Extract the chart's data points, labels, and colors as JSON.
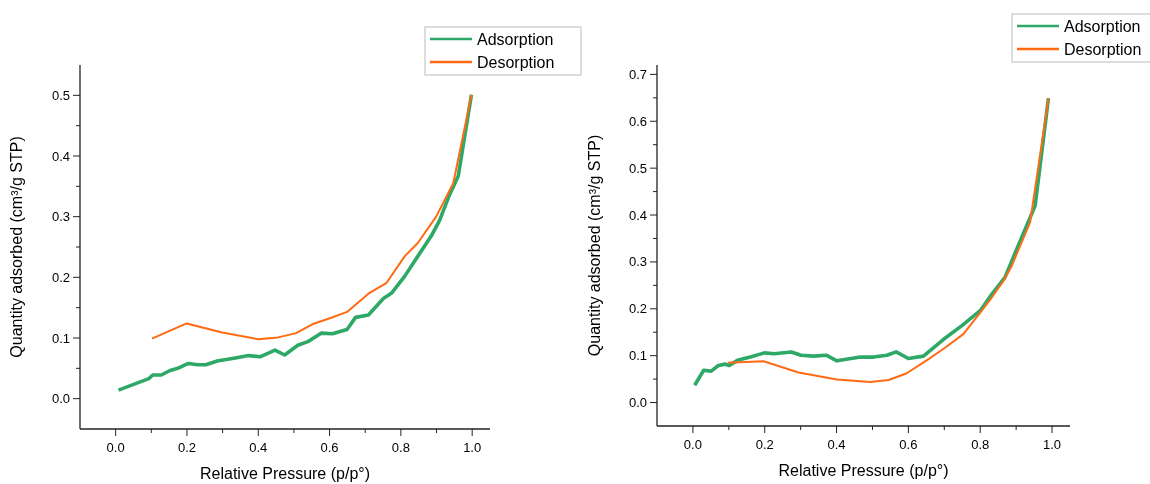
{
  "chart_data": [
    {
      "type": "line",
      "xlabel": "Relative Pressure (p/p°)",
      "ylabel": "Quantity adsorbed (cm³/g STP)",
      "xlim": [
        -0.1,
        1.05
      ],
      "ylim": [
        -0.05,
        0.55
      ],
      "xticks": [
        {
          "value": 0,
          "label": "0.0"
        },
        {
          "value": 0.1,
          "label": null
        },
        {
          "value": 0.2,
          "label": "0.2"
        },
        {
          "value": 0.3,
          "label": null
        },
        {
          "value": 0.4,
          "label": "0.4"
        },
        {
          "value": 0.5,
          "label": null
        },
        {
          "value": 0.6,
          "label": "0.6"
        },
        {
          "value": 0.7,
          "label": null
        },
        {
          "value": 0.8,
          "label": "0.8"
        },
        {
          "value": 0.9,
          "label": null
        },
        {
          "value": 1,
          "label": "1.0"
        }
      ],
      "yticks": [
        {
          "value": 0,
          "label": "0.0"
        },
        {
          "value": 0.05,
          "label": null
        },
        0.1,
        {
          "value": 0.15,
          "label": null
        },
        0.2,
        {
          "value": 0.25,
          "label": null
        },
        0.3,
        {
          "value": 0.35,
          "label": null
        },
        0.4,
        {
          "value": 0.45,
          "label": null
        },
        0.5
      ],
      "legend": "top right",
      "grid": false,
      "series": [
        {
          "name": "Adsorption",
          "color": "#2ea866",
          "x": [
            0.008,
            0.093,
            0.104,
            0.128,
            0.151,
            0.174,
            0.204,
            0.23,
            0.253,
            0.285,
            0.336,
            0.373,
            0.405,
            0.447,
            0.474,
            0.511,
            0.539,
            0.576,
            0.608,
            0.649,
            0.673,
            0.709,
            0.751,
            0.774,
            0.811,
            0.848,
            0.885,
            0.908,
            0.935,
            0.961,
            0.998
          ],
          "values": [
            0.014,
            0.033,
            0.039,
            0.039,
            0.046,
            0.05,
            0.058,
            0.056,
            0.056,
            0.062,
            0.067,
            0.071,
            0.069,
            0.08,
            0.072,
            0.088,
            0.094,
            0.108,
            0.107,
            0.114,
            0.134,
            0.138,
            0.165,
            0.174,
            0.202,
            0.235,
            0.268,
            0.293,
            0.334,
            0.367,
            0.501
          ]
        },
        {
          "name": "Desorption",
          "color": "#ff6a13",
          "x": [
            0.102,
            0.199,
            0.299,
            0.4,
            0.456,
            0.506,
            0.553,
            0.603,
            0.649,
            0.709,
            0.76,
            0.811,
            0.848,
            0.899,
            0.947,
            0.998
          ],
          "values": [
            0.099,
            0.124,
            0.109,
            0.098,
            0.101,
            0.108,
            0.123,
            0.133,
            0.143,
            0.173,
            0.191,
            0.235,
            0.257,
            0.3,
            0.355,
            0.501
          ]
        }
      ]
    },
    {
      "type": "line",
      "xlabel": "Relative Pressure (p/p°)",
      "ylabel": "Quantity adsorbed (cm³/g STP)",
      "xlim": [
        -0.1,
        1.05
      ],
      "ylim": [
        -0.05,
        0.72
      ],
      "xticks": [
        {
          "value": 0,
          "label": "0.0"
        },
        {
          "value": 0.1,
          "label": null
        },
        {
          "value": 0.2,
          "label": "0.2"
        },
        {
          "value": 0.3,
          "label": null
        },
        {
          "value": 0.4,
          "label": "0.4"
        },
        {
          "value": 0.5,
          "label": null
        },
        {
          "value": 0.6,
          "label": "0.6"
        },
        {
          "value": 0.7,
          "label": null
        },
        {
          "value": 0.8,
          "label": "0.8"
        },
        {
          "value": 0.9,
          "label": null
        },
        {
          "value": 1,
          "label": "1.0"
        }
      ],
      "yticks": [
        {
          "value": 0,
          "label": "0.0"
        },
        {
          "value": 0.05,
          "label": null
        },
        0.1,
        {
          "value": 0.15,
          "label": null
        },
        0.2,
        {
          "value": 0.25,
          "label": null
        },
        0.3,
        {
          "value": 0.35,
          "label": null
        },
        0.4,
        {
          "value": 0.45,
          "label": null
        },
        0.5,
        {
          "value": 0.55,
          "label": null
        },
        0.6,
        {
          "value": 0.65,
          "label": null
        },
        0.7
      ],
      "legend": "top right",
      "grid": false,
      "series": [
        {
          "name": "Adsorption",
          "color": "#2ea866",
          "x": [
            0.005,
            0.03,
            0.051,
            0.071,
            0.09,
            0.101,
            0.124,
            0.16,
            0.199,
            0.226,
            0.274,
            0.301,
            0.336,
            0.371,
            0.401,
            0.466,
            0.503,
            0.54,
            0.566,
            0.6,
            0.642,
            0.698,
            0.749,
            0.8,
            0.832,
            0.869,
            0.906,
            0.953,
            0.99
          ],
          "values": [
            0.037,
            0.069,
            0.067,
            0.079,
            0.082,
            0.079,
            0.09,
            0.097,
            0.106,
            0.104,
            0.108,
            0.101,
            0.099,
            0.101,
            0.089,
            0.097,
            0.097,
            0.101,
            0.108,
            0.094,
            0.099,
            0.135,
            0.164,
            0.196,
            0.231,
            0.267,
            0.335,
            0.42,
            0.649
          ]
        },
        {
          "name": "Desorption",
          "color": "#ff6a13",
          "x": [
            0.097,
            0.197,
            0.294,
            0.401,
            0.494,
            0.545,
            0.594,
            0.651,
            0.702,
            0.753,
            0.8,
            0.832,
            0.865,
            0.888,
            0.939,
            0.99
          ],
          "values": [
            0.085,
            0.088,
            0.064,
            0.049,
            0.044,
            0.048,
            0.062,
            0.09,
            0.117,
            0.146,
            0.192,
            0.224,
            0.26,
            0.292,
            0.385,
            0.649
          ]
        }
      ]
    }
  ]
}
